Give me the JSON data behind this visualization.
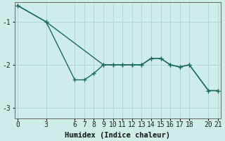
{
  "xlabel": "Humidex (Indice chaleur)",
  "background_color": "#ceecea",
  "line_color": "#1a6b5a",
  "grid_color": "#aed4d0",
  "x_ticks": [
    0,
    3,
    6,
    7,
    8,
    9,
    10,
    11,
    12,
    13,
    14,
    15,
    16,
    17,
    18,
    20,
    21
  ],
  "ylim": [
    -3.25,
    -0.55
  ],
  "xlim": [
    -0.3,
    21.3
  ],
  "yticks": [
    -1,
    -2,
    -3
  ],
  "upper_x": [
    0,
    3,
    9,
    10,
    11,
    12,
    13,
    14,
    15,
    16,
    17,
    18,
    20,
    21
  ],
  "upper_y": [
    -0.62,
    -1.0,
    -2.0,
    -2.0,
    -2.0,
    -2.0,
    -2.0,
    -1.85,
    -1.85,
    -2.0,
    -2.05,
    -2.0,
    -2.6,
    -2.6
  ],
  "lower_x": [
    0,
    3,
    6,
    7,
    8,
    9,
    10,
    11,
    12,
    13,
    14,
    15,
    16,
    17,
    18,
    20,
    21
  ],
  "lower_y": [
    -0.62,
    -1.0,
    -2.35,
    -2.35,
    -2.2,
    -2.0,
    -2.0,
    -2.0,
    -2.0,
    -2.0,
    -1.85,
    -1.85,
    -2.0,
    -2.05,
    -2.0,
    -2.6,
    -2.6
  ],
  "marker": "+",
  "marker_size": 4,
  "line_width": 1.0,
  "tick_font_size": 7,
  "xlabel_fontsize": 7.5
}
